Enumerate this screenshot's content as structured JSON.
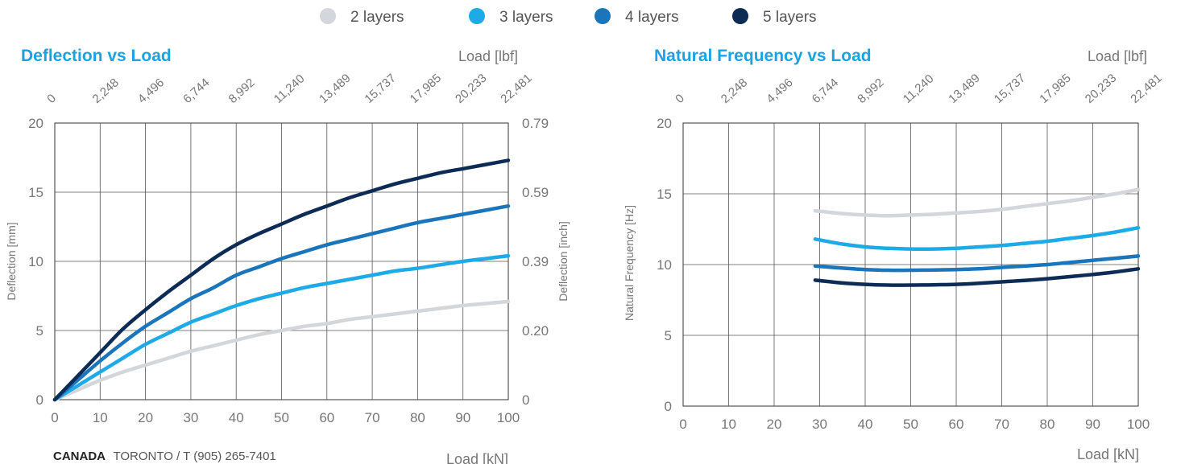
{
  "legend": [
    {
      "label": "2 layers",
      "color": "#d3d6da"
    },
    {
      "label": "3 layers",
      "color": "#1eaae7"
    },
    {
      "label": "4 layers",
      "color": "#1b75bb"
    },
    {
      "label": "5 layers",
      "color": "#0c2c56"
    }
  ],
  "footer": {
    "country": "CANADA",
    "rest": "TORONTO / T (905) 265-7401"
  },
  "chart_data": [
    {
      "type": "line",
      "title": "Deflection vs Load",
      "xlabel": "Load [kN]",
      "x2label": "Load [lbf]",
      "ylabel": "Deflection [mm]",
      "y2label": "Deflection [inch]",
      "xlim": [
        0,
        100
      ],
      "ylim": [
        0,
        20
      ],
      "xticks": [
        "0",
        "10",
        "20",
        "30",
        "40",
        "50",
        "60",
        "70",
        "80",
        "90",
        "100"
      ],
      "x2ticks": [
        "0",
        "2,248",
        "4,496",
        "6,744",
        "8,992",
        "11,240",
        "13,489",
        "15,737",
        "17,985",
        "20,233",
        "22,481"
      ],
      "yticks": [
        "0",
        "5",
        "10",
        "15",
        "20"
      ],
      "y2ticks": [
        "0",
        "0.20",
        "0.39",
        "0.59",
        "0.79"
      ],
      "grid": true,
      "x": [
        0,
        5,
        10,
        15,
        20,
        25,
        30,
        35,
        40,
        45,
        50,
        55,
        60,
        65,
        70,
        75,
        80,
        85,
        90,
        95,
        100
      ],
      "series": [
        {
          "name": "2 layers",
          "color": "#d3d6da",
          "values": [
            0,
            0.7,
            1.4,
            2.0,
            2.5,
            3.0,
            3.5,
            3.9,
            4.3,
            4.7,
            5.0,
            5.3,
            5.5,
            5.8,
            6.0,
            6.2,
            6.4,
            6.6,
            6.8,
            6.95,
            7.1
          ]
        },
        {
          "name": "3 layers",
          "color": "#1eaae7",
          "values": [
            0,
            1.0,
            2.0,
            3.0,
            4.0,
            4.8,
            5.6,
            6.2,
            6.8,
            7.3,
            7.7,
            8.1,
            8.4,
            8.7,
            9.0,
            9.3,
            9.5,
            9.75,
            10.0,
            10.2,
            10.4
          ]
        },
        {
          "name": "4 layers",
          "color": "#1b75bb",
          "values": [
            0,
            1.4,
            2.8,
            4.1,
            5.3,
            6.3,
            7.3,
            8.1,
            9.0,
            9.6,
            10.2,
            10.7,
            11.2,
            11.6,
            12.0,
            12.4,
            12.8,
            13.1,
            13.4,
            13.7,
            14.0
          ]
        },
        {
          "name": "5 layers",
          "color": "#0c2c56",
          "values": [
            0,
            1.7,
            3.4,
            5.1,
            6.5,
            7.8,
            9.0,
            10.2,
            11.2,
            12.0,
            12.7,
            13.4,
            14.0,
            14.6,
            15.1,
            15.6,
            16.0,
            16.4,
            16.7,
            17.0,
            17.3
          ]
        }
      ]
    },
    {
      "type": "line",
      "title": "Natural Frequency vs Load",
      "xlabel": "Load [kN]",
      "x2label": "Load [lbf]",
      "ylabel": "Natural Frequency [Hz]",
      "xlim": [
        0,
        100
      ],
      "ylim": [
        0,
        20
      ],
      "xticks": [
        "0",
        "10",
        "20",
        "30",
        "40",
        "50",
        "60",
        "70",
        "80",
        "90",
        "100"
      ],
      "x2ticks": [
        "0",
        "2,248",
        "4,496",
        "6,744",
        "8,992",
        "11,240",
        "13,489",
        "15,737",
        "17,985",
        "20,233",
        "22,481"
      ],
      "yticks": [
        "0",
        "5",
        "10",
        "15",
        "20"
      ],
      "grid": true,
      "x": [
        29,
        35,
        40,
        45,
        50,
        55,
        60,
        65,
        70,
        75,
        80,
        85,
        90,
        95,
        100
      ],
      "series": [
        {
          "name": "2 layers",
          "color": "#d3d6da",
          "values": [
            13.8,
            13.6,
            13.5,
            13.45,
            13.5,
            13.55,
            13.65,
            13.75,
            13.9,
            14.1,
            14.3,
            14.5,
            14.75,
            15.0,
            15.3
          ]
        },
        {
          "name": "3 layers",
          "color": "#1eaae7",
          "values": [
            11.8,
            11.45,
            11.25,
            11.15,
            11.1,
            11.1,
            11.15,
            11.25,
            11.35,
            11.5,
            11.65,
            11.85,
            12.05,
            12.3,
            12.6
          ]
        },
        {
          "name": "4 layers",
          "color": "#1b75bb",
          "values": [
            9.9,
            9.75,
            9.65,
            9.6,
            9.6,
            9.62,
            9.65,
            9.7,
            9.8,
            9.9,
            10.0,
            10.15,
            10.3,
            10.45,
            10.6
          ]
        },
        {
          "name": "5 layers",
          "color": "#0c2c56",
          "values": [
            8.9,
            8.7,
            8.6,
            8.55,
            8.55,
            8.57,
            8.6,
            8.68,
            8.78,
            8.88,
            9.0,
            9.15,
            9.3,
            9.48,
            9.7
          ]
        }
      ]
    }
  ]
}
